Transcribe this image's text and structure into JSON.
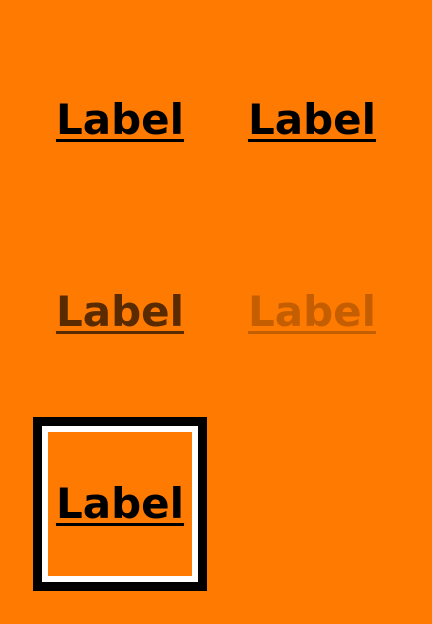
{
  "colors": {
    "background": "#FF7A00",
    "text_default": "#000000",
    "text_pressed": "#5A2A00",
    "text_disabled": "#C45E00",
    "focus_outer": "#000000",
    "focus_inner": "#FFFFFF"
  },
  "links": [
    {
      "state": "default",
      "label": "Label"
    },
    {
      "state": "hover",
      "label": "Label"
    },
    {
      "state": "pressed",
      "label": "Label"
    },
    {
      "state": "disabled",
      "label": "Label"
    },
    {
      "state": "focused",
      "label": "Label"
    }
  ]
}
